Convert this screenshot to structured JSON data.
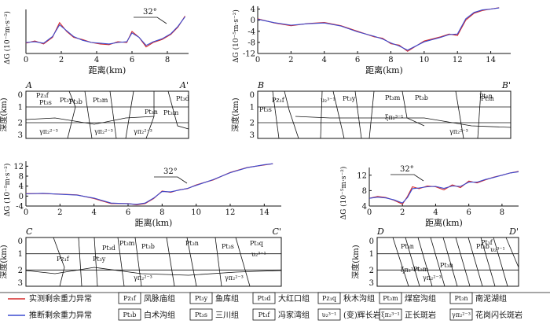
{
  "colors": {
    "observed": "#d62a2a",
    "inferred": "#3b4bd0",
    "ink": "#111111"
  },
  "labels": {
    "ylabel_g": "ΔG (10⁻⁵m·s⁻²)",
    "xlabel": "距离(km)",
    "depth_label": "深度(km)",
    "strike": "32°"
  },
  "panels": [
    {
      "id": "A",
      "section_start": "A",
      "section_end": "A'",
      "strike": "32°",
      "units": [
        "Pz₁f",
        "Pt₃y",
        "Pt₃b",
        "Pt₃m",
        "Pt₃n",
        "Pt₃m",
        "Pt₃d",
        "Pt₃s"
      ],
      "intrusions": [
        "γπ₂²⁻³",
        "γπ₂²⁻³",
        "γπ₂²⁻³"
      ]
    },
    {
      "id": "B",
      "section_start": "B",
      "section_end": "B'",
      "strike": "",
      "units": [
        "Pz₁f",
        "Pt₃s",
        "υ₂³⁻¹",
        "Pt₃y",
        "Pt₃m",
        "Pt₃b",
        "Pt₃n",
        "Pt₃n"
      ],
      "intrusions": [
        "ξπ₂³⁻¹",
        "γπ₂²⁻³"
      ]
    },
    {
      "id": "C",
      "section_start": "C",
      "section_end": "C'",
      "strike": "32°",
      "units": [
        "Pz₁f",
        "Pt₃y",
        "Pt₃d",
        "Pt₃m",
        "Pt₃b",
        "Pt₃n",
        "Pt₃s",
        "Pt₃q"
      ],
      "intrusions": [
        "γπ₂²⁻³",
        "γπ₂²⁻³",
        "υ₂³⁻¹"
      ]
    },
    {
      "id": "D",
      "section_start": "D",
      "section_end": "D'",
      "strike": "32°",
      "units": [
        "Pt₃n",
        "Pt₃b",
        "Pt₃f",
        "Pt₃n",
        "Pt₃m"
      ],
      "intrusions": [
        "ξπ₂³⁻¹",
        "γπ₂²⁻³",
        "υ₂³⁻¹"
      ]
    }
  ],
  "chart_data": [
    {
      "type": "line",
      "title": "",
      "xlabel": "距离(km)",
      "ylabel": "ΔG (10⁻⁵m·s⁻²)",
      "xlim": [
        0,
        9.2
      ],
      "ylim": [
        -1,
        5
      ],
      "xticks": [
        0,
        2,
        4,
        6,
        8
      ],
      "yticks": [],
      "series": [
        {
          "name": "实测剩余重力异常",
          "x": [
            0,
            0.5,
            1.0,
            1.5,
            1.9,
            2.3,
            2.7,
            3.2,
            3.7,
            4.2,
            4.7,
            5.2,
            5.7,
            6.0,
            6.4,
            6.8,
            7.2,
            7.7,
            8.2,
            8.6,
            9.0
          ],
          "y": [
            0.4,
            0.7,
            0.3,
            1.2,
            3.2,
            2.0,
            1.2,
            0.9,
            0.5,
            0.3,
            0.2,
            0.6,
            0.5,
            2.0,
            1.2,
            -0.1,
            0.5,
            0.9,
            1.6,
            2.6,
            4.1
          ]
        },
        {
          "name": "推断剩余重力异常",
          "x": [
            0,
            0.5,
            1.0,
            1.5,
            1.9,
            2.3,
            2.7,
            3.2,
            3.7,
            4.2,
            4.7,
            5.2,
            5.7,
            6.0,
            6.4,
            6.8,
            7.2,
            7.7,
            8.2,
            8.6,
            9.0
          ],
          "y": [
            0.5,
            0.6,
            0.4,
            1.3,
            2.9,
            2.1,
            1.3,
            0.8,
            0.5,
            0.4,
            0.3,
            0.5,
            0.6,
            1.8,
            1.2,
            0.1,
            0.6,
            1.0,
            1.7,
            2.7,
            4.0
          ]
        }
      ]
    },
    {
      "type": "line",
      "title": "",
      "xlabel": "距离(km)",
      "ylabel": "ΔG (10⁻⁵m·s⁻²)",
      "xlim": [
        0,
        15.2
      ],
      "ylim": [
        -12,
        5
      ],
      "xticks": [
        0,
        2,
        4,
        6,
        8,
        10,
        12,
        14
      ],
      "yticks": [
        4,
        0,
        -4,
        -8,
        -12
      ],
      "series": [
        {
          "name": "实测剩余重力异常",
          "x": [
            0,
            1,
            2,
            3,
            4,
            5,
            6,
            7,
            7.5,
            8,
            8.5,
            9,
            10,
            11,
            11.5,
            12,
            12.5,
            13,
            13.5,
            14,
            14.5
          ],
          "y": [
            0.5,
            -1,
            -2,
            -1.2,
            -0.8,
            -2,
            -4,
            -6,
            -6.5,
            -8.5,
            -9,
            -11.2,
            -7.5,
            -6,
            -5,
            -5.5,
            0,
            2.5,
            3.5,
            4,
            4.5
          ]
        },
        {
          "name": "推断剩余重力异常",
          "x": [
            0,
            1,
            2,
            3,
            4,
            5,
            6,
            7,
            7.5,
            8,
            8.5,
            9,
            10,
            11,
            11.5,
            12,
            12.5,
            13,
            13.5,
            14,
            14.5
          ],
          "y": [
            0.3,
            -0.9,
            -1.8,
            -1.3,
            -1,
            -2.1,
            -4.2,
            -5.8,
            -6.8,
            -8.2,
            -9.3,
            -10.8,
            -7.8,
            -6.2,
            -5.2,
            -5,
            0.5,
            2.8,
            3.7,
            4,
            4.4
          ]
        }
      ]
    },
    {
      "type": "line",
      "title": "",
      "xlabel": "距离(km)",
      "ylabel": "ΔG (10⁻⁵m·s⁻²)",
      "xlim": [
        0,
        15
      ],
      "ylim": [
        -4,
        14
      ],
      "xticks": [
        0,
        2,
        4,
        6,
        8,
        10,
        12,
        14
      ],
      "yticks": [
        -4,
        0,
        4,
        8,
        12
      ],
      "series": [
        {
          "name": "实测剩余重力异常",
          "x": [
            0,
            1,
            2,
            3,
            4,
            5,
            6,
            6.5,
            7,
            7.5,
            8,
            8.5,
            9,
            9.5,
            10,
            11,
            12,
            13,
            14,
            14.5
          ],
          "y": [
            1,
            1,
            0.8,
            0.5,
            -1,
            -3,
            -3,
            -3.5,
            -3,
            -1,
            2,
            1.5,
            2.5,
            3,
            4.5,
            6.5,
            9.5,
            11.5,
            12.5,
            13
          ]
        },
        {
          "name": "推断剩余重力异常",
          "x": [
            0,
            1,
            2,
            3,
            4,
            5,
            6,
            6.5,
            7,
            7.5,
            8,
            8.5,
            9,
            9.5,
            10,
            11,
            12,
            13,
            14,
            14.5
          ],
          "y": [
            0.9,
            1.1,
            0.7,
            0.4,
            -0.8,
            -2.8,
            -3.1,
            -3.3,
            -2.8,
            -0.8,
            1.8,
            1.7,
            2.4,
            3.1,
            4.3,
            6.6,
            9.4,
            11.4,
            12.6,
            13
          ]
        }
      ]
    },
    {
      "type": "line",
      "title": "",
      "xlabel": "距离(km)",
      "ylabel": "ΔG (10⁻⁵m·s⁻²)",
      "xlim": [
        0,
        9
      ],
      "ylim": [
        4,
        14
      ],
      "xticks": [
        0,
        2,
        4,
        6,
        8
      ],
      "yticks": [
        4,
        8,
        12
      ],
      "series": [
        {
          "name": "实测剩余重力异常",
          "x": [
            0,
            0.5,
            1,
            1.5,
            2,
            2.3,
            2.6,
            3,
            3.5,
            4,
            4.5,
            5,
            5.5,
            6,
            6.5,
            7,
            7.5,
            8,
            8.5,
            9
          ],
          "y": [
            6,
            6.5,
            6.2,
            5.5,
            4.5,
            6.5,
            9,
            8.5,
            9.2,
            9,
            8.2,
            9.5,
            8.8,
            10.5,
            10,
            10.8,
            11.5,
            12,
            12.6,
            13
          ]
        },
        {
          "name": "推断剩余重力异常",
          "x": [
            0,
            0.5,
            1,
            1.5,
            2,
            2.3,
            2.6,
            3,
            3.5,
            4,
            4.5,
            5,
            5.5,
            6,
            6.5,
            7,
            7.5,
            8,
            8.5,
            9
          ],
          "y": [
            6,
            6.3,
            6.1,
            5.6,
            4.8,
            6.2,
            8.5,
            8.7,
            9,
            9.1,
            8.6,
            9.2,
            9.1,
            10.2,
            10.2,
            10.9,
            11.4,
            12,
            12.6,
            12.9
          ]
        }
      ]
    }
  ],
  "legend": {
    "curves": [
      {
        "key": "observed",
        "label": "实测剩余重力异常"
      },
      {
        "key": "inferred",
        "label": "推断剩余重力异常"
      }
    ],
    "units": [
      {
        "symbol": "Pz₁f",
        "label": "凤脉庙组"
      },
      {
        "symbol": "Pt₃y",
        "label": "鱼库组"
      },
      {
        "symbol": "Pt₃d",
        "label": "大红口组"
      },
      {
        "symbol": "Pz₁q",
        "label": "秋木沟组"
      },
      {
        "symbol": "Pt₃m",
        "label": "煤窑沟组"
      },
      {
        "symbol": "Pt₃n",
        "label": "南泥湖组"
      },
      {
        "symbol": "Pt₃b",
        "label": "白术沟组"
      },
      {
        "symbol": "Pt₃s",
        "label": "三川组"
      },
      {
        "symbol": "Pt₃f",
        "label": "冯家湾组"
      },
      {
        "symbol": "υ₂³⁻¹",
        "label": "(变)辉长岩"
      },
      {
        "symbol": "ξπ₂³⁻¹",
        "label": "正长斑岩"
      },
      {
        "symbol": "γπ₂²⁻³",
        "label": "花岗闪长斑岩"
      }
    ]
  }
}
